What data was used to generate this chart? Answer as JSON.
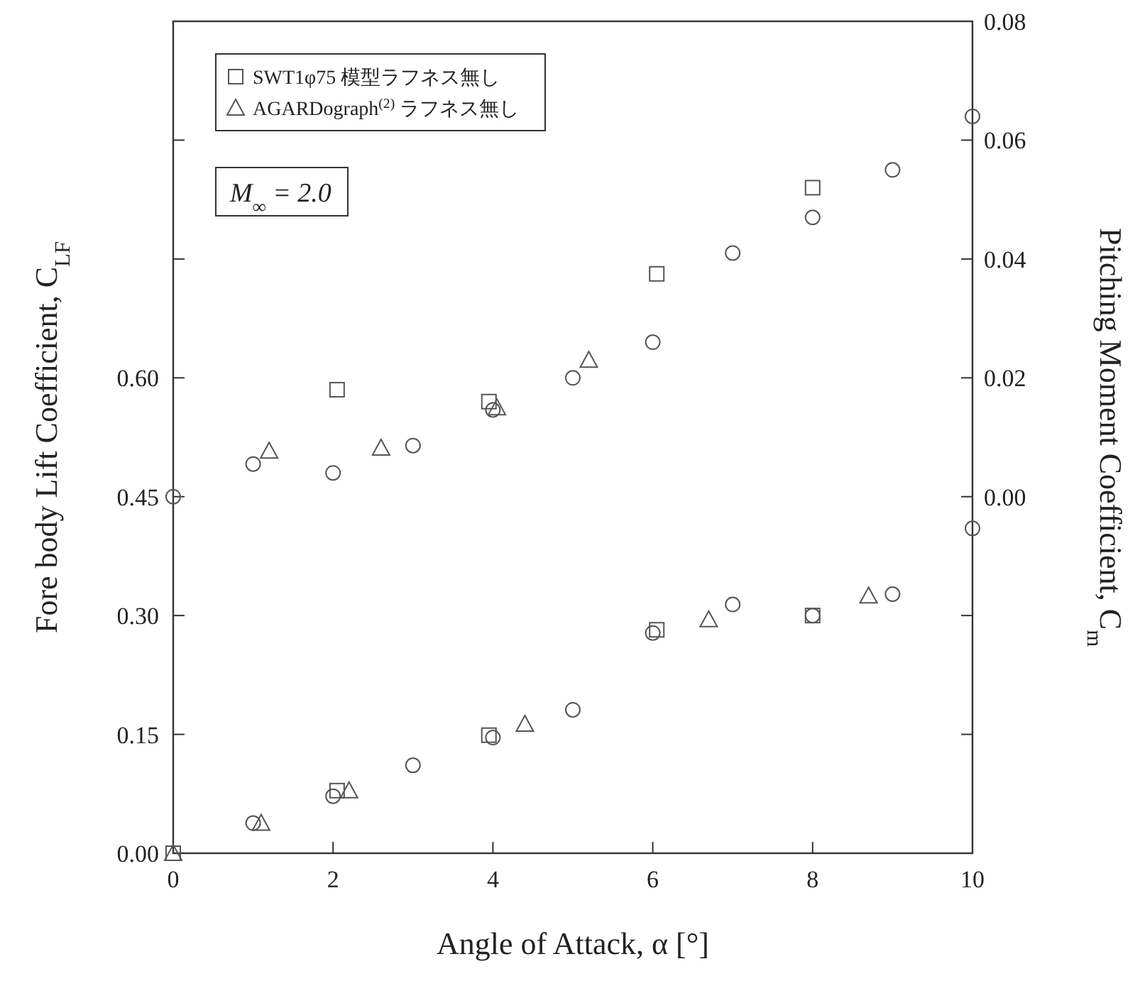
{
  "chart_data": {
    "type": "scatter",
    "xlabel": "Angle of Attack, α [°]",
    "ylabel": "Fore body Lift Coefficient, C$_{LF}$",
    "y2label": "Pitching Moment Coefficient, C$_{m}$",
    "xlim": [
      0,
      10
    ],
    "xticks": [
      0,
      2,
      4,
      6,
      8,
      10
    ],
    "ylim": [
      0,
      1.05
    ],
    "yticks": [
      {
        "value": 0,
        "label": "0.00"
      },
      {
        "value": 0.15,
        "label": "0.15"
      },
      {
        "value": 0.3,
        "label": "0.30"
      },
      {
        "value": 0.45,
        "label": "0.45"
      },
      {
        "value": 0.6,
        "label": "0.60"
      },
      {
        "value": 0.75,
        "label": null
      },
      {
        "value": 0.9,
        "label": null
      }
    ],
    "y2lim": [
      -0.06,
      0.08
    ],
    "y2ticks": [
      {
        "value": -0.04,
        "label": null
      },
      {
        "value": -0.02,
        "label": null
      },
      {
        "value": 0,
        "label": "0.00"
      },
      {
        "value": 0.02,
        "label": "0.02"
      },
      {
        "value": 0.04,
        "label": "0.04"
      },
      {
        "value": 0.06,
        "label": "0.06"
      },
      {
        "value": 0.08,
        "label": "0.08"
      }
    ],
    "legend": "top left",
    "grid": false,
    "annotations": [
      "M$_{∞}$ = 2.0"
    ],
    "series": [
      {
        "name": "SWT1φ75 模型ラフネス無し",
        "marker": "square",
        "color": "#555555",
        "x": [
          0,
          2.05,
          3.95,
          6.05,
          8
        ],
        "values": [
          0,
          0.079,
          0.149,
          0.282,
          0.3
        ]
      },
      {
        "name": "AGARDograph$^{(2)}$ ラフネス無し",
        "marker": "triangle",
        "color": "#555555",
        "x": [
          0,
          1.1,
          2.2,
          4.4,
          6.7,
          8.7
        ],
        "values": [
          0,
          0.038,
          0.079,
          0.163,
          0.295,
          0.325
        ]
      },
      {
        "marker": "circle",
        "color": "#555555",
        "x": [
          1,
          2,
          3,
          4,
          5,
          6,
          7,
          8,
          9,
          10
        ],
        "values": [
          0.038,
          0.072,
          0.111,
          0.146,
          0.181,
          0.278,
          0.314,
          0.3,
          0.327,
          0.41
        ]
      },
      {
        "marker": "square",
        "color": "#555555",
        "axis": "y2",
        "x": [
          2.05,
          3.95,
          6.05,
          8
        ],
        "values": [
          0.018,
          0.016,
          0.0375,
          0.052
        ]
      },
      {
        "marker": "triangle",
        "color": "#555555",
        "axis": "y2",
        "x": [
          1.2,
          2.6,
          4.05,
          5.2
        ],
        "values": [
          0.0077,
          0.0082,
          0.015,
          0.023
        ]
      },
      {
        "marker": "circle",
        "color": "#555555",
        "axis": "y2",
        "x": [
          0,
          1,
          2,
          3,
          4,
          5,
          6,
          7,
          8,
          9,
          10
        ],
        "values": [
          0,
          0.0055,
          0.004,
          0.0086,
          0.0146,
          0.02,
          0.026,
          0.041,
          0.047,
          0.055,
          0.064
        ]
      }
    ]
  }
}
